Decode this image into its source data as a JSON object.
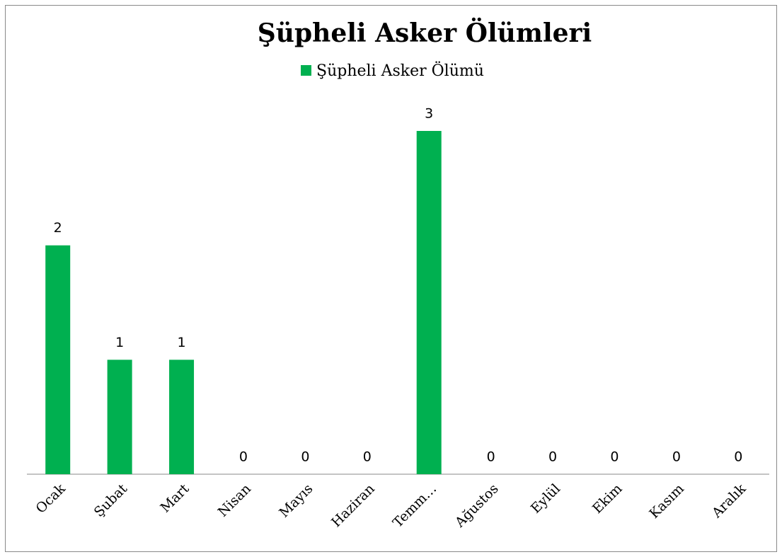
{
  "chart_data": {
    "type": "bar",
    "title": "Şüpheli Asker Ölümleri",
    "categories": [
      "Ocak",
      "Şubat",
      "Mart",
      "Nisan",
      "Mayıs",
      "Haziran",
      "Temm…",
      "Ağustos",
      "Eylül",
      "Ekim",
      "Kasım",
      "Aralık"
    ],
    "series": [
      {
        "name": "Şüpheli Asker Ölümü",
        "color": "#00b050",
        "values": [
          2,
          1,
          1,
          0,
          0,
          0,
          3,
          0,
          0,
          0,
          0,
          0
        ]
      }
    ],
    "legend": "top",
    "grid": false
  }
}
